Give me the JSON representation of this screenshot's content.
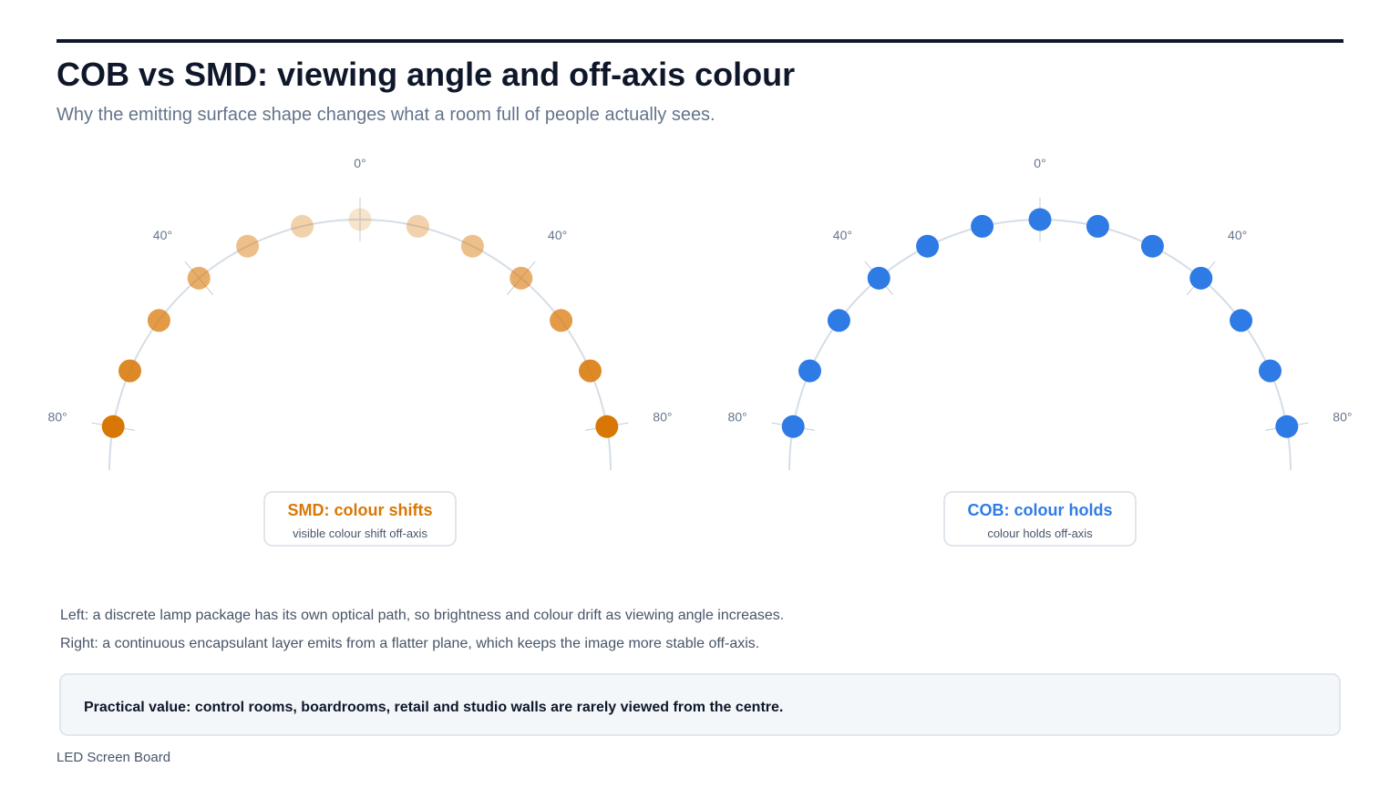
{
  "header": {
    "title": "COB vs SMD: viewing angle and off-axis colour",
    "subtitle": "Why the emitting surface shape changes what a room full of people actually sees."
  },
  "panels": [
    {
      "angle_labels": {
        "centre": "0°",
        "mid": "40°",
        "edge": "80°"
      },
      "caption_title": "SMD: colour shifts",
      "caption_text": "visible colour shift off-axis",
      "color": "#d97706",
      "fade": true
    },
    {
      "angle_labels": {
        "centre": "0°",
        "mid": "40°",
        "edge": "80°"
      },
      "caption_title": "COB: colour holds",
      "caption_text": "colour holds off-axis",
      "color": "#2f7be6",
      "fade": false
    }
  ],
  "notes": [
    "Left: a discrete lamp package has its own optical path, so brightness and colour drift as viewing angle increases.",
    "Right: a continuous encapsulant layer emits from a flatter plane, which keeps the image more stable off-axis."
  ],
  "callout": "Practical value: control rooms, boardrooms, retail and studio walls are rarely viewed from the centre.",
  "footer": "LED Screen Board"
}
